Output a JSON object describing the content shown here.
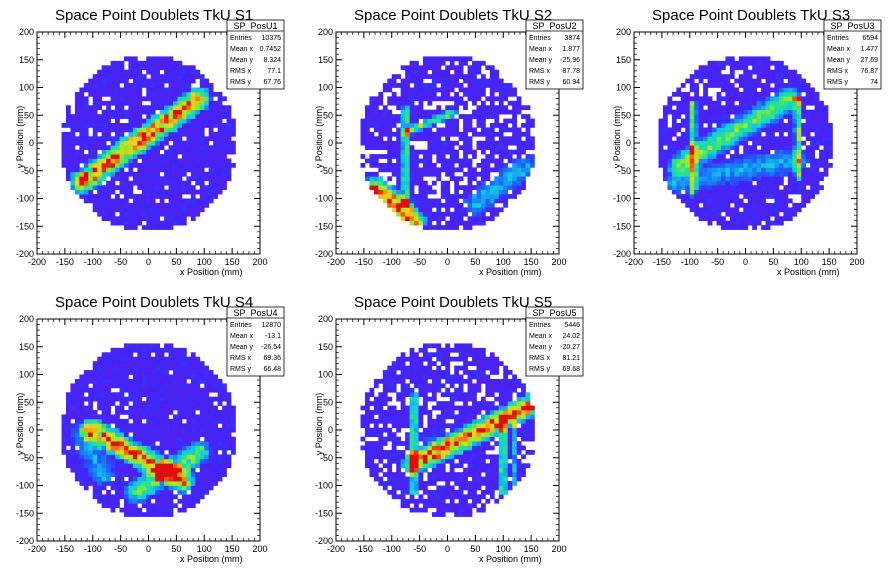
{
  "chart_data": [
    {
      "type": "heatmap",
      "title": "Space Point Doublets TkU S1",
      "xlabel": "x Position (mm)",
      "ylabel": "y Position (mm)",
      "xlim": [
        -200,
        200
      ],
      "ylim": [
        -200,
        200
      ],
      "xticks": [
        "-200",
        "-150",
        "-100",
        "-50",
        "0",
        "50",
        "100",
        "150",
        "200"
      ],
      "yticks": [
        "-200",
        "-150",
        "-100",
        "-50",
        "0",
        "50",
        "100",
        "150",
        "200"
      ],
      "stats": {
        "name": "SP_PosU1",
        "rows": [
          {
            "label": "Entries",
            "value": "10375"
          },
          {
            "label": "Mean x",
            "value": "0.7452"
          },
          {
            "label": "Mean y",
            "value": "8.324"
          },
          {
            "label": "RMS x",
            "value": "77.1"
          },
          {
            "label": "RMS y",
            "value": "67.76"
          }
        ]
      },
      "features": [
        {
          "shape": "band",
          "from": [
            -120,
            -70
          ],
          "to": [
            90,
            80
          ],
          "peak": [
            -10,
            5
          ],
          "intensity": "high"
        }
      ]
    },
    {
      "type": "heatmap",
      "title": "Space Point Doublets TkU S2",
      "xlabel": "x Position (mm)",
      "ylabel": "y Position (mm)",
      "xlim": [
        -200,
        200
      ],
      "ylim": [
        -200,
        200
      ],
      "xticks": [
        "-200",
        "-150",
        "-100",
        "-50",
        "0",
        "50",
        "100",
        "150",
        "200"
      ],
      "yticks": [
        "-200",
        "-150",
        "-100",
        "-50",
        "0",
        "50",
        "100",
        "150",
        "200"
      ],
      "stats": {
        "name": "SP_PosU2",
        "rows": [
          {
            "label": "Entries",
            "value": "3874"
          },
          {
            "label": "Mean x",
            "value": "1.877"
          },
          {
            "label": "Mean y",
            "value": "-25.96"
          },
          {
            "label": "RMS x",
            "value": "87.78"
          },
          {
            "label": "RMS y",
            "value": "60.94"
          }
        ]
      },
      "features": [
        {
          "shape": "line",
          "from": [
            -75,
            60
          ],
          "to": [
            -75,
            -110
          ],
          "intensity": "medium"
        },
        {
          "shape": "line",
          "from": [
            -75,
            20
          ],
          "to": [
            10,
            55
          ],
          "intensity": "medium"
        },
        {
          "shape": "band",
          "from": [
            -130,
            -80
          ],
          "to": [
            -60,
            -140
          ],
          "peak": [
            -80,
            -110
          ],
          "intensity": "high"
        },
        {
          "shape": "band",
          "from": [
            50,
            -110
          ],
          "to": [
            140,
            -40
          ],
          "intensity": "low"
        }
      ]
    },
    {
      "type": "heatmap",
      "title": "Space Point Doublets TkU S3",
      "xlabel": "x Position (mm)",
      "ylabel": "y Position (mm)",
      "xlim": [
        -200,
        200
      ],
      "ylim": [
        -200,
        200
      ],
      "xticks": [
        "-200",
        "-150",
        "-100",
        "-50",
        "0",
        "50",
        "100",
        "150",
        "200"
      ],
      "yticks": [
        "-200",
        "-150",
        "-100",
        "-50",
        "0",
        "50",
        "100",
        "150",
        "200"
      ],
      "stats": {
        "name": "SP_PosU3",
        "rows": [
          {
            "label": "Entries",
            "value": "6594"
          },
          {
            "label": "Mean x",
            "value": "1.477"
          },
          {
            "label": "Mean y",
            "value": "27.69"
          },
          {
            "label": "RMS x",
            "value": "76.87"
          },
          {
            "label": "RMS y",
            "value": "74"
          }
        ]
      },
      "features": [
        {
          "shape": "line",
          "from": [
            -95,
            70
          ],
          "to": [
            -95,
            -90
          ],
          "intensity": "medium"
        },
        {
          "shape": "line",
          "from": [
            95,
            80
          ],
          "to": [
            95,
            -60
          ],
          "intensity": "medium"
        },
        {
          "shape": "band",
          "from": [
            -120,
            -40
          ],
          "to": [
            80,
            80
          ],
          "intensity": "medium"
        },
        {
          "shape": "band",
          "from": [
            -130,
            -70
          ],
          "to": [
            90,
            -30
          ],
          "intensity": "low"
        }
      ]
    },
    {
      "type": "heatmap",
      "title": "Space Point Doublets TkU S4",
      "xlabel": "x Position (mm)",
      "ylabel": "y Position (mm)",
      "xlim": [
        -200,
        200
      ],
      "ylim": [
        -200,
        200
      ],
      "xticks": [
        "-200",
        "-150",
        "-100",
        "-50",
        "0",
        "50",
        "100",
        "150",
        "200"
      ],
      "yticks": [
        "-200",
        "-150",
        "-100",
        "-50",
        "0",
        "50",
        "100",
        "150",
        "200"
      ],
      "stats": {
        "name": "SP_PosU4",
        "rows": [
          {
            "label": "Entries",
            "value": "12870"
          },
          {
            "label": "Mean x",
            "value": "-13.1"
          },
          {
            "label": "Mean y",
            "value": "-26.54"
          },
          {
            "label": "RMS x",
            "value": "69.36"
          },
          {
            "label": "RMS y",
            "value": "66.48"
          }
        ]
      },
      "features": [
        {
          "shape": "band",
          "from": [
            -100,
            0
          ],
          "to": [
            60,
            -90
          ],
          "peak": [
            -50,
            -40
          ],
          "intensity": "high"
        },
        {
          "shape": "band",
          "from": [
            -20,
            -110
          ],
          "to": [
            90,
            -40
          ],
          "intensity": "medium"
        },
        {
          "shape": "band",
          "from": [
            -120,
            -10
          ],
          "to": [
            -80,
            -80
          ],
          "intensity": "low"
        }
      ]
    },
    {
      "type": "heatmap",
      "title": "Space Point Doublets TkU S5",
      "xlabel": "x Position (mm)",
      "ylabel": "y Position (mm)",
      "xlim": [
        -200,
        200
      ],
      "ylim": [
        -200,
        200
      ],
      "xticks": [
        "-200",
        "-150",
        "-100",
        "-50",
        "0",
        "50",
        "100",
        "150",
        "200"
      ],
      "yticks": [
        "-200",
        "-150",
        "-100",
        "-50",
        "0",
        "50",
        "100",
        "150",
        "200"
      ],
      "stats": {
        "name": "SP_PosU5",
        "rows": [
          {
            "label": "Entries",
            "value": "5446"
          },
          {
            "label": "Mean x",
            "value": "24.02"
          },
          {
            "label": "Mean y",
            "value": "-20.27"
          },
          {
            "label": "RMS x",
            "value": "81.21"
          },
          {
            "label": "RMS y",
            "value": "69.68"
          }
        ]
      },
      "features": [
        {
          "shape": "line",
          "from": [
            -60,
            60
          ],
          "to": [
            -60,
            -110
          ],
          "intensity": "medium"
        },
        {
          "shape": "band",
          "from": [
            -60,
            -60
          ],
          "to": [
            160,
            50
          ],
          "peak": [
            -20,
            -25
          ],
          "intensity": "high"
        },
        {
          "shape": "line",
          "from": [
            100,
            20
          ],
          "to": [
            100,
            -110
          ],
          "intensity": "medium"
        },
        {
          "shape": "line",
          "from": [
            120,
            30
          ],
          "to": [
            120,
            -100
          ],
          "intensity": "low"
        }
      ]
    }
  ]
}
